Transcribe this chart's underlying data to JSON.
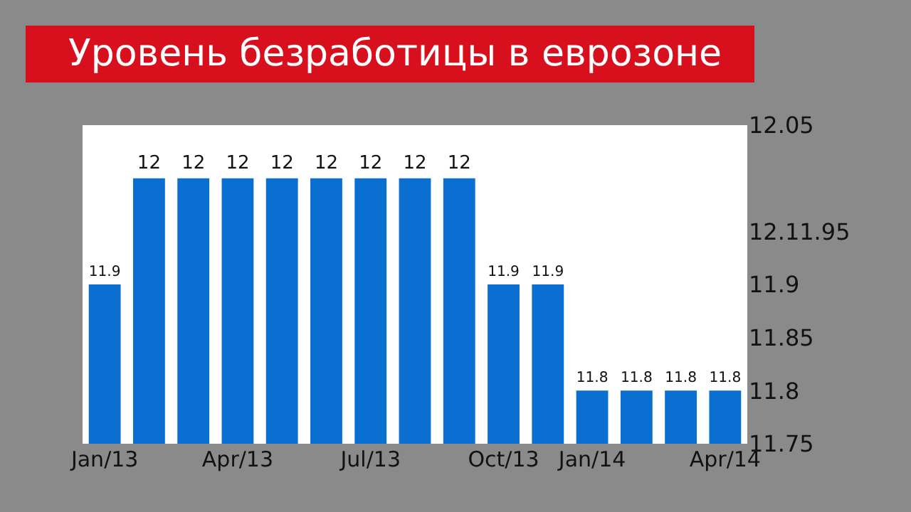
{
  "chart_data": {
    "type": "bar",
    "title": "Уровень безработицы в еврозоне",
    "categories": [
      "Jan/13",
      null,
      null,
      "Apr/13",
      null,
      null,
      "Jul/13",
      null,
      null,
      "Oct/13",
      null,
      "Jan/14",
      null,
      null,
      "Apr/14"
    ],
    "values": [
      11.9,
      12,
      12,
      12,
      12,
      12,
      12,
      12,
      12,
      11.9,
      11.9,
      11.8,
      11.8,
      11.8,
      11.8
    ],
    "color": "#0a6fd0",
    "data_labels": true,
    "ylim": [
      11.75,
      12.05
    ],
    "yticks": [
      12.05,
      {
        "value": 11.95,
        "label": "12.11.95"
      },
      11.9,
      11.85,
      11.8,
      11.75
    ]
  }
}
